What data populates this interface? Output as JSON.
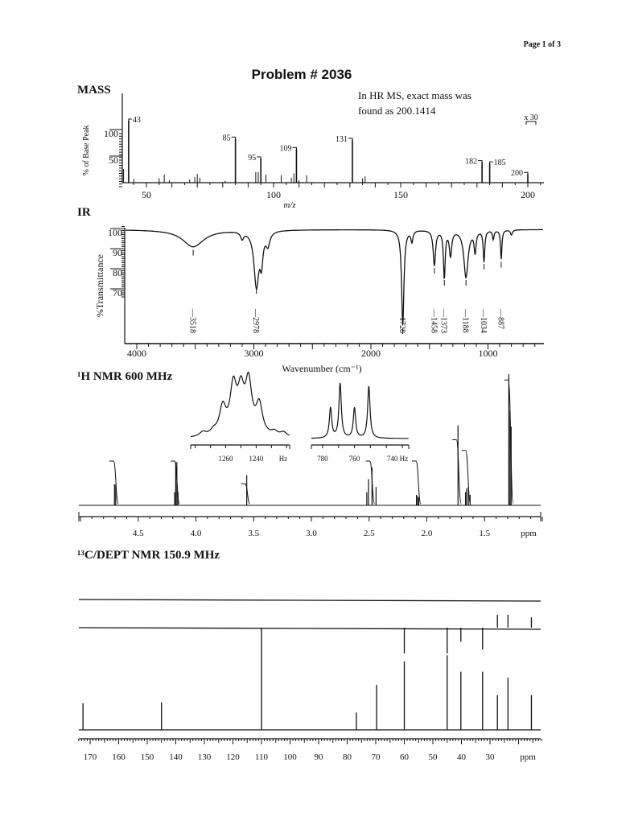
{
  "page": {
    "label": "Page 1 of 3",
    "title": "Problem # 2036"
  },
  "chart_data": [
    {
      "type": "bar",
      "title": "MASS",
      "xlabel": "m/z",
      "ylabel": "% of Base Peak",
      "xlim": [
        40,
        205
      ],
      "x_ticks": [
        50,
        100,
        150,
        200
      ],
      "y_ticks": [
        50,
        100
      ],
      "annotation": [
        "In HR MS, exact mass was",
        "found as 200.1414"
      ],
      "scale_note": "x 30",
      "peaks": [
        {
          "mz": 41,
          "intensity": 22
        },
        {
          "mz": 43,
          "intensity": 100,
          "label": "43"
        },
        {
          "mz": 45,
          "intensity": 6
        },
        {
          "mz": 55,
          "intensity": 7
        },
        {
          "mz": 57,
          "intensity": 13
        },
        {
          "mz": 59,
          "intensity": 4
        },
        {
          "mz": 67,
          "intensity": 5
        },
        {
          "mz": 69,
          "intensity": 9
        },
        {
          "mz": 70,
          "intensity": 14
        },
        {
          "mz": 71,
          "intensity": 8
        },
        {
          "mz": 81,
          "intensity": 3
        },
        {
          "mz": 85,
          "intensity": 71,
          "label": "85"
        },
        {
          "mz": 93,
          "intensity": 17
        },
        {
          "mz": 94,
          "intensity": 17
        },
        {
          "mz": 95,
          "intensity": 39,
          "label": "95"
        },
        {
          "mz": 97,
          "intensity": 13
        },
        {
          "mz": 103,
          "intensity": 12
        },
        {
          "mz": 107,
          "intensity": 8
        },
        {
          "mz": 108,
          "intensity": 15
        },
        {
          "mz": 109,
          "intensity": 54,
          "label": "109"
        },
        {
          "mz": 110,
          "intensity": 4
        },
        {
          "mz": 113,
          "intensity": 12
        },
        {
          "mz": 131,
          "intensity": 69,
          "label": "131"
        },
        {
          "mz": 135,
          "intensity": 7
        },
        {
          "mz": 136,
          "intensity": 10
        },
        {
          "mz": 182,
          "intensity": 33,
          "label": "182"
        },
        {
          "mz": 185,
          "intensity": 31,
          "label": "185"
        },
        {
          "mz": 200,
          "intensity": 14,
          "label": "200"
        }
      ]
    },
    {
      "type": "line",
      "title": "IR",
      "xlabel": "Wavenumber (cm⁻¹)",
      "ylabel": "%Transmittance",
      "xlim": [
        4000,
        530
      ],
      "ylim": [
        45,
        104
      ],
      "x_ticks": [
        4000,
        3000,
        2000,
        1000
      ],
      "y_ticks": [
        70,
        80,
        90,
        100
      ],
      "bands": [
        {
          "wavenumber": 3518,
          "transmittance": 93,
          "width": 110,
          "label": "3518"
        },
        {
          "wavenumber": 3100,
          "transmittance": 98,
          "width": 15
        },
        {
          "wavenumber": 2978,
          "transmittance": 74,
          "width": 25,
          "label": "2978"
        },
        {
          "wavenumber": 2935,
          "transmittance": 88,
          "width": 15
        },
        {
          "wavenumber": 2880,
          "transmittance": 95,
          "width": 20
        },
        {
          "wavenumber": 1728,
          "transmittance": 54,
          "width": 12,
          "label": "1728"
        },
        {
          "wavenumber": 1650,
          "transmittance": 96,
          "width": 10
        },
        {
          "wavenumber": 1458,
          "transmittance": 84,
          "width": 12,
          "label": "1458"
        },
        {
          "wavenumber": 1373,
          "transmittance": 78,
          "width": 9,
          "label": "1373"
        },
        {
          "wavenumber": 1320,
          "transmittance": 89,
          "width": 12
        },
        {
          "wavenumber": 1188,
          "transmittance": 78,
          "width": 22,
          "label": "1188"
        },
        {
          "wavenumber": 1110,
          "transmittance": 91,
          "width": 10
        },
        {
          "wavenumber": 1034,
          "transmittance": 86,
          "width": 8,
          "label": "1034"
        },
        {
          "wavenumber": 955,
          "transmittance": 97,
          "width": 8
        },
        {
          "wavenumber": 887,
          "transmittance": 87,
          "width": 7,
          "label": "887"
        },
        {
          "wavenumber": 800,
          "transmittance": 99,
          "width": 10
        }
      ]
    },
    {
      "type": "line",
      "title": "¹H NMR 600 MHz",
      "xlabel": "ppm",
      "xlim": [
        5.0,
        1.0
      ],
      "x_ticks": [
        "4.5",
        "4.0",
        "3.5",
        "3.0",
        "2.5",
        "2.0",
        "1.5"
      ],
      "peaks": [
        {
          "ppm": 4.705,
          "height": 0.16
        },
        {
          "ppm": 4.695,
          "height": 0.16
        },
        {
          "ppm": 4.185,
          "height": 0.1
        },
        {
          "ppm": 4.175,
          "height": 0.33
        },
        {
          "ppm": 4.165,
          "height": 0.33
        },
        {
          "ppm": 4.155,
          "height": 0.1
        },
        {
          "ppm": 3.56,
          "height": 0.23
        },
        {
          "ppm": 2.52,
          "height": 0.1
        },
        {
          "ppm": 2.505,
          "height": 0.2
        },
        {
          "ppm": 2.475,
          "height": 0.29
        },
        {
          "ppm": 2.44,
          "height": 0.14
        },
        {
          "ppm": 2.09,
          "height": 0.08
        },
        {
          "ppm": 2.08,
          "height": 0.07
        },
        {
          "ppm": 2.07,
          "height": 0.06
        },
        {
          "ppm": 1.73,
          "height": 0.61
        },
        {
          "ppm": 1.665,
          "height": 0.1
        },
        {
          "ppm": 1.655,
          "height": 0.13
        },
        {
          "ppm": 1.64,
          "height": 0.14
        },
        {
          "ppm": 1.625,
          "height": 0.08
        },
        {
          "ppm": 1.29,
          "height": 1.0
        },
        {
          "ppm": 1.28,
          "height": 0.72
        },
        {
          "ppm": 1.27,
          "height": 0.6
        }
      ],
      "integrals": [
        {
          "ppm": 4.7,
          "value": 1.0
        },
        {
          "ppm": 4.17,
          "value": 1.0
        },
        {
          "ppm": 3.56,
          "value": 0.47
        },
        {
          "ppm": 2.48,
          "value": 1.0
        },
        {
          "ppm": 2.08,
          "value": 1.0
        },
        {
          "ppm": 1.73,
          "value": 1.5
        },
        {
          "ppm": 1.65,
          "value": 1.25
        },
        {
          "ppm": 1.28,
          "value": 2.9
        }
      ],
      "insets": [
        {
          "xlabel": "Hz",
          "xlim": [
            1283,
            1218
          ],
          "x_ticks": [
            "1260",
            "1240"
          ],
          "peaks": [
            {
              "hz": 1275,
              "height": 0.08
            },
            {
              "hz": 1268,
              "height": 0.08
            },
            {
              "hz": 1262,
              "height": 0.5
            },
            {
              "hz": 1255,
              "height": 0.85
            },
            {
              "hz": 1250,
              "height": 0.72
            },
            {
              "hz": 1245,
              "height": 0.92
            },
            {
              "hz": 1238,
              "height": 0.55
            },
            {
              "hz": 1228,
              "height": 0.08
            },
            {
              "hz": 1222,
              "height": 0.08
            }
          ]
        },
        {
          "xlabel": "740 Hz",
          "xlim": [
            787,
            726
          ],
          "x_ticks": [
            "780",
            "760"
          ],
          "peaks": [
            {
              "hz": 775,
              "height": 0.55
            },
            {
              "hz": 769,
              "height": 1.0
            },
            {
              "hz": 760,
              "height": 0.55
            },
            {
              "hz": 751,
              "height": 0.95
            }
          ]
        }
      ]
    },
    {
      "type": "bar",
      "title": "¹³C/DEPT NMR 150.9 MHz",
      "xlabel": "ppm",
      "xlim": [
        174,
        12
      ],
      "x_ticks": [
        170,
        160,
        150,
        140,
        130,
        120,
        110,
        100,
        90,
        80,
        70,
        60,
        50,
        40,
        30
      ],
      "spectra": [
        {
          "peaks": []
        },
        {
          "peaks": [
            {
              "ppm": 60,
              "intensity": -1.0
            },
            {
              "ppm": 45,
              "intensity": -1.0
            },
            {
              "ppm": 40.2,
              "intensity": -0.55
            },
            {
              "ppm": 32.6,
              "intensity": -0.85
            },
            {
              "ppm": 27.4,
              "intensity": 0.5
            },
            {
              "ppm": 23.7,
              "intensity": 0.5
            },
            {
              "ppm": 15.5,
              "intensity": 0.4
            }
          ]
        },
        {
          "peaks": [
            {
              "ppm": 172.5,
              "intensity": 0.26
            },
            {
              "ppm": 145,
              "intensity": 0.27
            },
            {
              "ppm": 110,
              "intensity": 1.0
            },
            {
              "ppm": 76.8,
              "intensity": 0.17
            },
            {
              "ppm": 69.7,
              "intensity": 0.44
            },
            {
              "ppm": 60,
              "intensity": 0.67
            },
            {
              "ppm": 45,
              "intensity": 0.73
            },
            {
              "ppm": 40.2,
              "intensity": 0.57
            },
            {
              "ppm": 32.6,
              "intensity": 0.57
            },
            {
              "ppm": 27.4,
              "intensity": 0.34
            },
            {
              "ppm": 23.7,
              "intensity": 0.51
            },
            {
              "ppm": 15.5,
              "intensity": 0.34
            }
          ]
        }
      ]
    }
  ]
}
